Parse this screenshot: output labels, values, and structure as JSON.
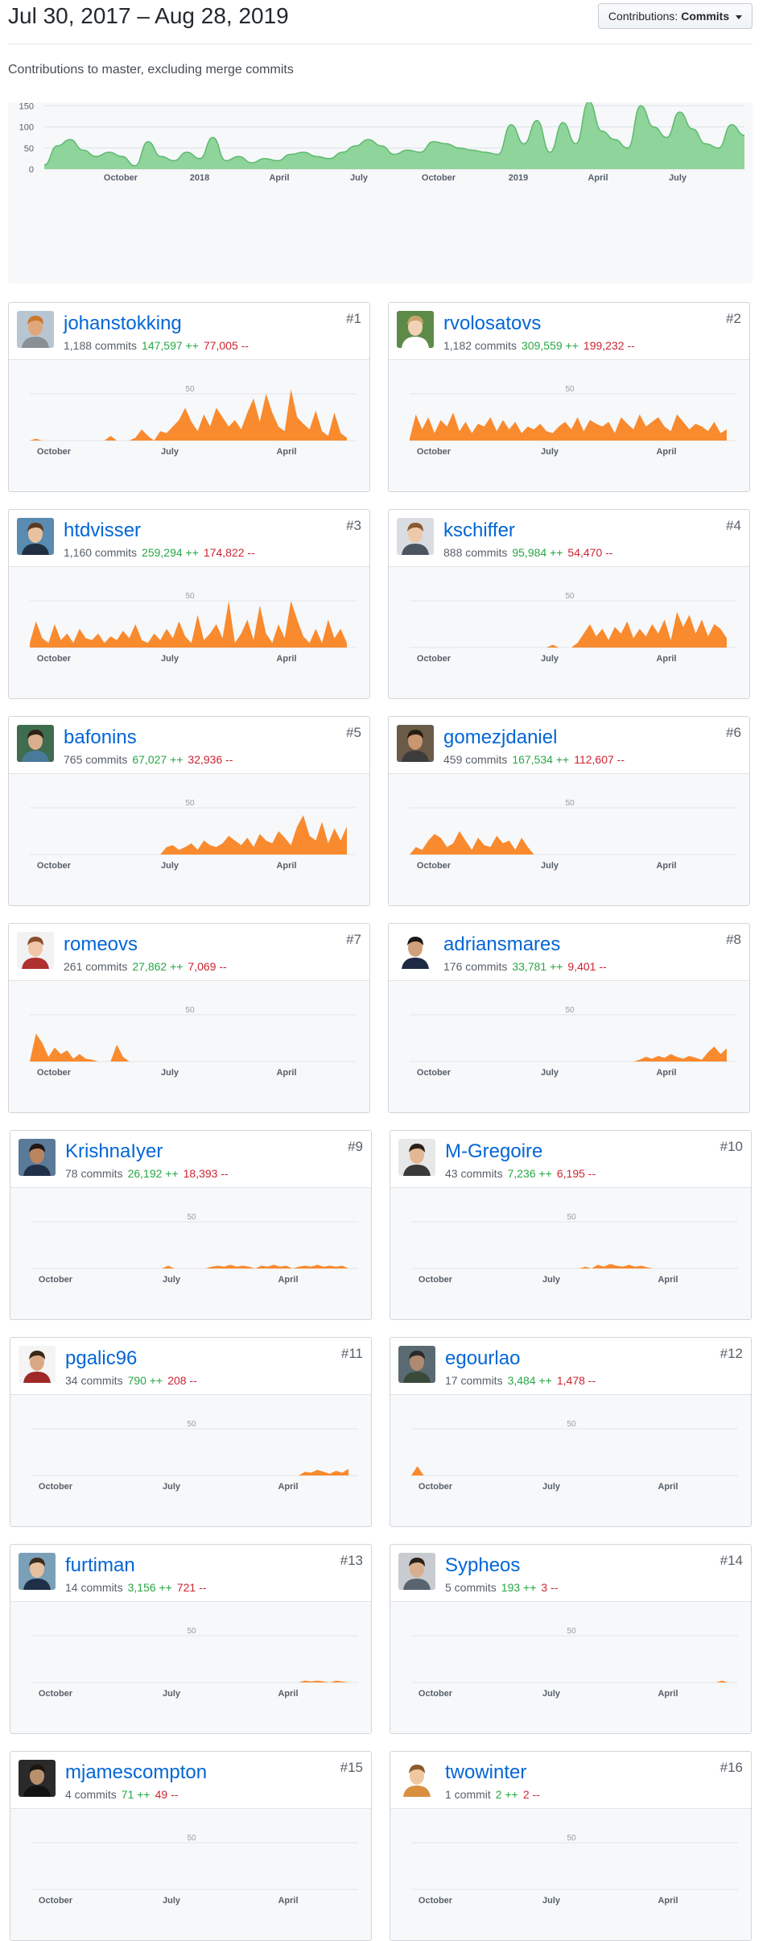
{
  "header": {
    "date_range": "Jul 30, 2017 – Aug 28, 2019",
    "contributions_label": "Contributions:",
    "contributions_value": "Commits",
    "subtitle": "Contributions to master, excluding merge commits"
  },
  "colors": {
    "overview_fill": "#8fd49a",
    "overview_stroke": "#5cba6f",
    "card_fill": "#f98a2e",
    "link": "#0366d6",
    "additions": "#28a745",
    "deletions": "#cb2431"
  },
  "chart_data": [
    {
      "type": "area",
      "id": "overview",
      "x_tick_labels": [
        "October",
        "2018",
        "April",
        "July",
        "October",
        "2019",
        "April",
        "July"
      ],
      "y_ticks": [
        0,
        50,
        100,
        150,
        200
      ],
      "ylim": [
        0,
        200
      ],
      "x": [
        "2017-07-30",
        "2017-08-13",
        "2017-08-27",
        "2017-09-10",
        "2017-09-24",
        "2017-10-08",
        "2017-10-22",
        "2017-11-05",
        "2017-11-19",
        "2017-12-03",
        "2017-12-17",
        "2017-12-31",
        "2018-01-14",
        "2018-01-28",
        "2018-02-11",
        "2018-02-25",
        "2018-03-11",
        "2018-03-25",
        "2018-04-08",
        "2018-04-22",
        "2018-05-06",
        "2018-05-20",
        "2018-06-03",
        "2018-06-17",
        "2018-07-01",
        "2018-07-15",
        "2018-07-29",
        "2018-08-12",
        "2018-08-26",
        "2018-09-09",
        "2018-09-23",
        "2018-10-07",
        "2018-10-21",
        "2018-11-04",
        "2018-11-18",
        "2018-12-02",
        "2018-12-16",
        "2018-12-30",
        "2019-01-13",
        "2019-01-27",
        "2019-02-10",
        "2019-02-24",
        "2019-03-10",
        "2019-03-24",
        "2019-04-07",
        "2019-04-21",
        "2019-05-05",
        "2019-05-19",
        "2019-06-02",
        "2019-06-16",
        "2019-06-30",
        "2019-07-14",
        "2019-07-28",
        "2019-08-11",
        "2019-08-25"
      ],
      "values": [
        10,
        55,
        70,
        45,
        30,
        40,
        30,
        8,
        65,
        30,
        20,
        40,
        25,
        75,
        20,
        30,
        15,
        25,
        20,
        35,
        40,
        30,
        25,
        40,
        55,
        70,
        55,
        35,
        45,
        40,
        65,
        60,
        50,
        45,
        40,
        35,
        105,
        60,
        115,
        40,
        110,
        60,
        160,
        90,
        70,
        50,
        150,
        100,
        75,
        135,
        95,
        60,
        50,
        105,
        80
      ]
    },
    {
      "type": "area",
      "id": "johanstokking",
      "x_tick_labels": [
        "October",
        "July",
        "April"
      ],
      "y_ticks": [
        50
      ],
      "values": [
        0,
        2,
        0,
        0,
        0,
        0,
        0,
        0,
        0,
        0,
        0,
        0,
        0,
        5,
        0,
        0,
        0,
        3,
        12,
        5,
        0,
        10,
        8,
        15,
        22,
        35,
        20,
        10,
        28,
        15,
        35,
        25,
        15,
        22,
        12,
        30,
        45,
        20,
        50,
        30,
        15,
        10,
        55,
        25,
        18,
        12,
        32,
        10,
        5,
        30,
        8,
        3
      ]
    },
    {
      "type": "area",
      "id": "rvolosatovs",
      "x_tick_labels": [
        "October",
        "July",
        "April"
      ],
      "y_ticks": [
        50
      ],
      "values": [
        2,
        28,
        12,
        25,
        8,
        22,
        15,
        30,
        10,
        20,
        8,
        18,
        15,
        25,
        10,
        22,
        12,
        20,
        8,
        15,
        12,
        18,
        10,
        8,
        15,
        20,
        12,
        25,
        10,
        22,
        18,
        15,
        20,
        8,
        25,
        18,
        12,
        28,
        15,
        20,
        25,
        15,
        10,
        28,
        20,
        12,
        18,
        15,
        10,
        20,
        8,
        12
      ]
    },
    {
      "type": "area",
      "id": "htdvisser",
      "x_tick_labels": [
        "October",
        "July",
        "April"
      ],
      "y_ticks": [
        50
      ],
      "values": [
        5,
        28,
        10,
        5,
        25,
        8,
        15,
        5,
        20,
        10,
        8,
        15,
        5,
        12,
        8,
        18,
        10,
        25,
        8,
        5,
        15,
        8,
        20,
        10,
        28,
        12,
        5,
        35,
        8,
        15,
        25,
        10,
        50,
        5,
        15,
        30,
        8,
        45,
        15,
        5,
        25,
        10,
        50,
        30,
        12,
        5,
        20,
        5,
        30,
        10,
        20,
        5
      ]
    },
    {
      "type": "area",
      "id": "kschiffer",
      "x_tick_labels": [
        "October",
        "July",
        "April"
      ],
      "y_ticks": [
        50
      ],
      "values": [
        0,
        0,
        0,
        0,
        0,
        0,
        0,
        0,
        0,
        0,
        0,
        0,
        0,
        0,
        0,
        0,
        0,
        0,
        0,
        0,
        0,
        0,
        0,
        3,
        0,
        0,
        0,
        5,
        15,
        25,
        12,
        20,
        8,
        22,
        15,
        28,
        10,
        20,
        12,
        25,
        15,
        30,
        8,
        38,
        22,
        35,
        15,
        30,
        12,
        25,
        20,
        10
      ]
    },
    {
      "type": "area",
      "id": "bafonins",
      "x_tick_labels": [
        "October",
        "July",
        "April"
      ],
      "y_ticks": [
        50
      ],
      "values": [
        0,
        0,
        0,
        0,
        0,
        0,
        0,
        0,
        0,
        0,
        0,
        0,
        0,
        0,
        0,
        0,
        0,
        0,
        0,
        0,
        0,
        0,
        8,
        10,
        5,
        8,
        12,
        5,
        15,
        10,
        8,
        12,
        20,
        15,
        10,
        18,
        8,
        22,
        15,
        12,
        25,
        18,
        10,
        30,
        42,
        20,
        15,
        35,
        12,
        28,
        15,
        30
      ]
    },
    {
      "type": "area",
      "id": "gomezjdaniel",
      "x_tick_labels": [
        "October",
        "July",
        "April"
      ],
      "y_ticks": [
        50
      ],
      "values": [
        0,
        8,
        5,
        15,
        22,
        18,
        8,
        12,
        25,
        15,
        5,
        18,
        10,
        8,
        20,
        12,
        15,
        5,
        18,
        8,
        0,
        0,
        0,
        0,
        0,
        0,
        0,
        0,
        0,
        0,
        0,
        0,
        0,
        0,
        0,
        0,
        0,
        0,
        0,
        0,
        0,
        0,
        0,
        0,
        0,
        0,
        0,
        0,
        0,
        0,
        0,
        0
      ]
    },
    {
      "type": "area",
      "id": "romeovs",
      "x_tick_labels": [
        "October",
        "July",
        "April"
      ],
      "y_ticks": [
        50
      ],
      "values": [
        0,
        30,
        20,
        5,
        15,
        8,
        12,
        3,
        8,
        3,
        2,
        0,
        0,
        0,
        18,
        5,
        0,
        0,
        0,
        0,
        0,
        0,
        0,
        0,
        0,
        0,
        0,
        0,
        0,
        0,
        0,
        0,
        0,
        0,
        0,
        0,
        0,
        0,
        0,
        0,
        0,
        0,
        0,
        0,
        0,
        0,
        0,
        0,
        0,
        0,
        0,
        0
      ]
    },
    {
      "type": "area",
      "id": "adriansmares",
      "x_tick_labels": [
        "October",
        "July",
        "April"
      ],
      "y_ticks": [
        50
      ],
      "values": [
        0,
        0,
        0,
        0,
        0,
        0,
        0,
        0,
        0,
        0,
        0,
        0,
        0,
        0,
        0,
        0,
        0,
        0,
        0,
        0,
        0,
        0,
        0,
        0,
        0,
        0,
        0,
        0,
        0,
        0,
        0,
        0,
        0,
        0,
        0,
        0,
        0,
        2,
        5,
        3,
        6,
        4,
        8,
        5,
        3,
        6,
        4,
        2,
        10,
        16,
        8,
        14
      ]
    },
    {
      "type": "area",
      "id": "krishnaiyer",
      "x_tick_labels": [
        "October",
        "July",
        "April"
      ],
      "y_ticks": [
        50
      ],
      "values": [
        0,
        0,
        0,
        0,
        0,
        0,
        0,
        0,
        0,
        0,
        0,
        0,
        0,
        0,
        0,
        0,
        0,
        0,
        0,
        0,
        0,
        0,
        3,
        0,
        0,
        0,
        0,
        0,
        0,
        2,
        3,
        2,
        4,
        2,
        3,
        2,
        0,
        3,
        2,
        4,
        2,
        3,
        0,
        2,
        3,
        2,
        4,
        2,
        3,
        2,
        3,
        0
      ]
    },
    {
      "type": "area",
      "id": "m-gregoire",
      "x_tick_labels": [
        "October",
        "July",
        "April"
      ],
      "y_ticks": [
        50
      ],
      "values": [
        0,
        0,
        0,
        0,
        0,
        0,
        0,
        0,
        0,
        0,
        0,
        0,
        0,
        0,
        0,
        0,
        0,
        0,
        0,
        0,
        0,
        0,
        0,
        0,
        0,
        0,
        0,
        0,
        2,
        0,
        4,
        2,
        5,
        3,
        2,
        4,
        2,
        3,
        1,
        0,
        0,
        0,
        0,
        0,
        0,
        0,
        0,
        0,
        0,
        0,
        0,
        0
      ]
    },
    {
      "type": "area",
      "id": "pgalic96",
      "x_tick_labels": [
        "October",
        "July",
        "April"
      ],
      "y_ticks": [
        50
      ],
      "values": [
        0,
        0,
        0,
        0,
        0,
        0,
        0,
        0,
        0,
        0,
        0,
        0,
        0,
        0,
        0,
        0,
        0,
        0,
        0,
        0,
        0,
        0,
        0,
        0,
        0,
        0,
        0,
        0,
        0,
        0,
        0,
        0,
        0,
        0,
        0,
        0,
        0,
        0,
        0,
        0,
        0,
        0,
        0,
        0,
        4,
        3,
        6,
        4,
        2,
        5,
        3,
        7
      ]
    },
    {
      "type": "area",
      "id": "egourlao",
      "x_tick_labels": [
        "October",
        "July",
        "April"
      ],
      "y_ticks": [
        50
      ],
      "values": [
        0,
        10,
        0,
        0,
        0,
        0,
        0,
        0,
        0,
        0,
        0,
        0,
        0,
        0,
        0,
        0,
        0,
        0,
        0,
        0,
        0,
        0,
        0,
        0,
        0,
        0,
        0,
        0,
        0,
        0,
        0,
        0,
        0,
        0,
        0,
        0,
        0,
        0,
        0,
        0,
        0,
        0,
        0,
        0,
        0,
        0,
        0,
        0,
        0,
        0,
        0,
        0
      ]
    },
    {
      "type": "area",
      "id": "furtiman",
      "x_tick_labels": [
        "October",
        "July",
        "April"
      ],
      "y_ticks": [
        50
      ],
      "values": [
        0,
        0,
        0,
        0,
        0,
        0,
        0,
        0,
        0,
        0,
        0,
        0,
        0,
        0,
        0,
        0,
        0,
        0,
        0,
        0,
        0,
        0,
        0,
        0,
        0,
        0,
        0,
        0,
        0,
        0,
        0,
        0,
        0,
        0,
        0,
        0,
        0,
        0,
        0,
        0,
        0,
        0,
        0,
        0,
        2,
        1,
        2,
        1,
        0,
        2,
        1,
        0
      ]
    },
    {
      "type": "area",
      "id": "sypheos",
      "x_tick_labels": [
        "October",
        "July",
        "April"
      ],
      "y_ticks": [
        50
      ],
      "values": [
        0,
        0,
        0,
        0,
        0,
        0,
        0,
        0,
        0,
        0,
        0,
        0,
        0,
        0,
        0,
        0,
        0,
        0,
        0,
        0,
        0,
        0,
        0,
        0,
        0,
        0,
        0,
        0,
        0,
        0,
        0,
        0,
        0,
        0,
        0,
        0,
        0,
        0,
        0,
        0,
        0,
        0,
        0,
        0,
        0,
        0,
        0,
        0,
        0,
        0,
        2,
        0
      ]
    },
    {
      "type": "area",
      "id": "mjamescompton",
      "x_tick_labels": [
        "October",
        "July",
        "April"
      ],
      "y_ticks": [
        50
      ],
      "values": []
    },
    {
      "type": "area",
      "id": "twowinter",
      "x_tick_labels": [
        "October",
        "July",
        "April"
      ],
      "y_ticks": [
        50
      ],
      "values": []
    }
  ],
  "contributors": [
    {
      "login": "johanstokking",
      "rank": "#1",
      "commits": "1,188 commits",
      "additions": "147,597 ++",
      "deletions": "77,005 --",
      "avatar": {
        "bg": "#b8c6d4",
        "skin": "#e0a77c",
        "hair": "#c9792e",
        "shirt": "#8a8f95"
      }
    },
    {
      "login": "rvolosatovs",
      "rank": "#2",
      "commits": "1,182 commits",
      "additions": "309,559 ++",
      "deletions": "199,232 --",
      "avatar": {
        "bg": "#5e8a47",
        "skin": "#f1d2b6",
        "hair": "#c7a46a",
        "shirt": "#ffffff"
      }
    },
    {
      "login": "htdvisser",
      "rank": "#3",
      "commits": "1,160 commits",
      "additions": "259,294 ++",
      "deletions": "174,822 --",
      "avatar": {
        "bg": "#5a8bb0",
        "skin": "#e8c2a0",
        "hair": "#5a3b22",
        "shirt": "#203040"
      }
    },
    {
      "login": "kschiffer",
      "rank": "#4",
      "commits": "888 commits",
      "additions": "95,984 ++",
      "deletions": "54,470 --",
      "avatar": {
        "bg": "#d9dde2",
        "skin": "#edc8aa",
        "hair": "#8b5a30",
        "shirt": "#4a5560"
      }
    },
    {
      "login": "bafonins",
      "rank": "#5",
      "commits": "765 commits",
      "additions": "67,027 ++",
      "deletions": "32,936 --",
      "avatar": {
        "bg": "#3f6b4f",
        "skin": "#d9ae8c",
        "hair": "#2e2218",
        "shirt": "#4a7a9a"
      }
    },
    {
      "login": "gomezjdaniel",
      "rank": "#6",
      "commits": "459 commits",
      "additions": "167,534 ++",
      "deletions": "112,607 --",
      "avatar": {
        "bg": "#6a5a48",
        "skin": "#c99670",
        "hair": "#2a1c12",
        "shirt": "#3c3c3c"
      }
    },
    {
      "login": "romeovs",
      "rank": "#7",
      "commits": "261 commits",
      "additions": "27,862 ++",
      "deletions": "7,069 --",
      "avatar": {
        "bg": "#f2f2f2",
        "skin": "#efc7a8",
        "hair": "#8a4f2a",
        "shirt": "#b03030"
      }
    },
    {
      "login": "adriansmares",
      "rank": "#8",
      "commits": "176 commits",
      "additions": "33,781 ++",
      "deletions": "9,401 --",
      "avatar": {
        "bg": "#ffffff",
        "skin": "#d0a07a",
        "hair": "#1e1812",
        "shirt": "#1e2a44"
      }
    },
    {
      "login": "KrishnaIyer",
      "rank": "#9",
      "commits": "78 commits",
      "additions": "26,192 ++",
      "deletions": "18,393 --",
      "avatar": {
        "bg": "#5a7a9a",
        "skin": "#b98460",
        "hair": "#1e1612",
        "shirt": "#203048"
      }
    },
    {
      "login": "M-Gregoire",
      "rank": "#10",
      "commits": "43 commits",
      "additions": "7,236 ++",
      "deletions": "6,195 --",
      "avatar": {
        "bg": "#e8e8e8",
        "skin": "#e3b896",
        "hair": "#2a2018",
        "shirt": "#3a3a3a"
      }
    },
    {
      "login": "pgalic96",
      "rank": "#11",
      "commits": "34 commits",
      "additions": "790 ++",
      "deletions": "208 --",
      "avatar": {
        "bg": "#f4f4f4",
        "skin": "#d9a884",
        "hair": "#3a2818",
        "shirt": "#a02828"
      }
    },
    {
      "login": "egourlao",
      "rank": "#12",
      "commits": "17 commits",
      "additions": "3,484 ++",
      "deletions": "1,478 --",
      "avatar": {
        "bg": "#5a6a72",
        "skin": "#b08a70",
        "hair": "#2a2a2a",
        "shirt": "#3a4a3a"
      }
    },
    {
      "login": "furtiman",
      "rank": "#13",
      "commits": "14 commits",
      "additions": "3,156 ++",
      "deletions": "721 --",
      "avatar": {
        "bg": "#7aa0b8",
        "skin": "#e6c0a0",
        "hair": "#3a2a1c",
        "shirt": "#1e3048"
      }
    },
    {
      "login": "Sypheos",
      "rank": "#14",
      "commits": "5 commits",
      "additions": "193 ++",
      "deletions": "3 --",
      "avatar": {
        "bg": "#c8ccd0",
        "skin": "#d8b090",
        "hair": "#2a2018",
        "shirt": "#5a6470"
      }
    },
    {
      "login": "mjamescompton",
      "rank": "#15",
      "commits": "4 commits",
      "additions": "71 ++",
      "deletions": "49 --",
      "avatar": {
        "bg": "#2a2a2a",
        "skin": "#b8906e",
        "hair": "#1a1410",
        "shirt": "#121212"
      }
    },
    {
      "login": "twowinter",
      "rank": "#16",
      "commits": "1 commit",
      "additions": "2 ++",
      "deletions": "2 --",
      "avatar": {
        "bg": "#ffffff",
        "skin": "#f0c8a0",
        "hair": "#8a5a2a",
        "shirt": "#d89040"
      }
    }
  ]
}
